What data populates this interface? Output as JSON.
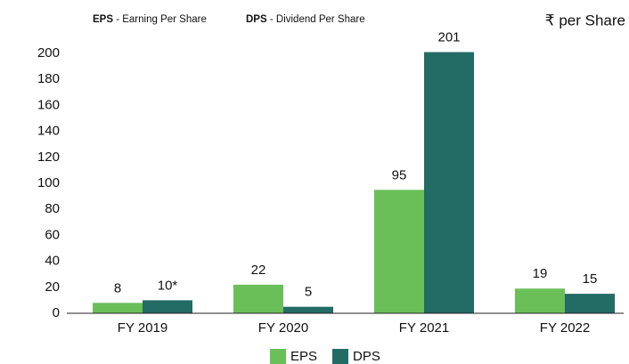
{
  "chart_data": {
    "type": "bar",
    "header_notes": [
      {
        "abbr": "EPS",
        "text": "- Earning Per Share"
      },
      {
        "abbr": "DPS",
        "text": "- Dividend Per Share"
      }
    ],
    "unit": "₹ per Share",
    "categories": [
      "FY 2019",
      "FY 2020",
      "FY 2021",
      "FY 2022"
    ],
    "series": [
      {
        "name": "EPS",
        "color": "#6abf59",
        "values": [
          8,
          22,
          95,
          19
        ]
      },
      {
        "name": "DPS",
        "color": "#236b65",
        "values": [
          10,
          5,
          201,
          15
        ],
        "value_labels": [
          "10*",
          "5",
          "201",
          "15"
        ]
      }
    ],
    "ylim": [
      0,
      200
    ],
    "yticks": [
      0,
      20,
      40,
      60,
      80,
      100,
      120,
      140,
      160,
      180,
      200
    ],
    "grid": false
  }
}
